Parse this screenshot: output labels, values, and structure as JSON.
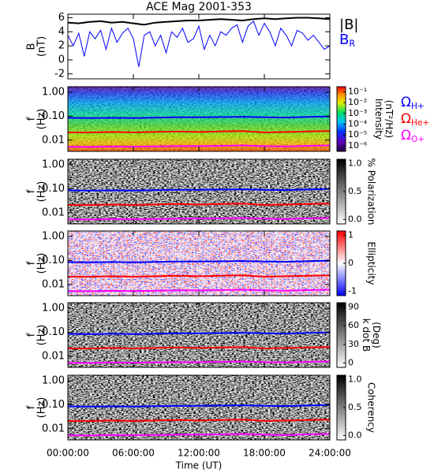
{
  "chart_data": {
    "title": "ACE Mag 2001-353",
    "xlabel": "Time (UT)",
    "xlim": [
      0,
      24
    ],
    "xticks": [
      {
        "value": 0,
        "label": "00:00:00"
      },
      {
        "value": 6,
        "label": "06:00:00"
      },
      {
        "value": 12,
        "label": "12:00:00"
      },
      {
        "value": 18,
        "label": "18:00:00"
      },
      {
        "value": 24,
        "label": "24:00:00"
      }
    ],
    "gyro_lines": {
      "x": [
        0,
        2,
        4,
        6,
        8,
        10,
        12,
        14,
        16,
        18,
        20,
        22,
        24
      ],
      "series": [
        {
          "name": "Ω",
          "sub": "H+",
          "color": "#0000ff",
          "values": [
            0.085,
            0.083,
            0.086,
            0.084,
            0.087,
            0.09,
            0.09,
            0.092,
            0.095,
            0.09,
            0.088,
            0.093,
            0.097
          ]
        },
        {
          "name": "Ω",
          "sub": "He+",
          "color": "#ff0000",
          "values": [
            0.021,
            0.021,
            0.022,
            0.021,
            0.022,
            0.023,
            0.022,
            0.023,
            0.024,
            0.021,
            0.022,
            0.023,
            0.024
          ]
        },
        {
          "name": "Ω",
          "sub": "O+",
          "color": "#ff00ff",
          "values": [
            0.0053,
            0.0052,
            0.0054,
            0.0053,
            0.0055,
            0.0056,
            0.0056,
            0.0058,
            0.006,
            0.0056,
            0.0055,
            0.0058,
            0.006
          ]
        }
      ]
    },
    "panels": [
      {
        "type": "line",
        "ylabel": [
          "B",
          "(nT)"
        ],
        "ylim": [
          -2.7,
          6.5
        ],
        "yticks": [
          -2,
          0,
          2,
          4,
          6
        ],
        "series": [
          {
            "name": "|B|",
            "color": "#000000",
            "x": [
              0,
              1,
              2,
              3,
              4,
              5,
              6,
              7,
              8,
              9,
              10,
              11,
              12,
              13,
              14,
              15,
              16,
              17,
              18,
              19,
              20,
              21,
              22,
              23,
              24
            ],
            "values": [
              5.3,
              5.2,
              5.4,
              5.5,
              5.3,
              5.4,
              5.2,
              5.0,
              5.3,
              5.4,
              5.5,
              5.6,
              5.6,
              5.7,
              5.8,
              5.7,
              5.6,
              5.8,
              5.9,
              5.8,
              5.9,
              6.0,
              6.0,
              5.9,
              5.8
            ]
          },
          {
            "name": "B",
            "sub": "R",
            "color": "#0000ff",
            "x": [
              0,
              0.5,
              1,
              1.5,
              2,
              2.5,
              3,
              3.5,
              4,
              4.5,
              5,
              5.5,
              6,
              6.5,
              7,
              7.5,
              8,
              8.5,
              9,
              9.5,
              10,
              10.5,
              11,
              11.5,
              12,
              12.5,
              13,
              13.5,
              14,
              14.5,
              15,
              15.5,
              16,
              16.5,
              17,
              17.5,
              18,
              18.5,
              19,
              19.5,
              20,
              20.5,
              21,
              21.5,
              22,
              22.5,
              23,
              23.5,
              24
            ],
            "values": [
              3.5,
              2.0,
              3.8,
              0.5,
              4.0,
              3.0,
              4.2,
              1.5,
              4.5,
              2.5,
              3.8,
              4.5,
              3.0,
              -1.0,
              3.5,
              4.0,
              2.0,
              3.5,
              1.0,
              4.0,
              3.2,
              4.5,
              2.5,
              3.0,
              4.8,
              1.5,
              3.5,
              2.0,
              4.0,
              3.5,
              4.5,
              5.0,
              2.5,
              4.8,
              5.5,
              3.5,
              5.2,
              4.0,
              2.0,
              4.5,
              3.5,
              2.0,
              4.2,
              3.8,
              2.8,
              3.5,
              2.5,
              1.5,
              2.0
            ]
          }
        ]
      },
      {
        "type": "spectrogram",
        "background": "intensity",
        "legend": true,
        "ylabel": [
          "f",
          "(Hz)"
        ],
        "log": true,
        "ylim": [
          0.0034,
          1.7
        ],
        "yticks": [
          {
            "value": 1,
            "label": "1.00"
          },
          {
            "value": 0.1,
            "label": "0.10"
          },
          {
            "value": 0.01,
            "label": "0.01"
          }
        ],
        "colorbar": {
          "label": [
            "Intensity",
            "(nT²/Hz)"
          ],
          "colormap": "rainbow",
          "log": true,
          "lim": [
            3e-07,
            0.3
          ],
          "ticks": [
            {
              "value": 0.1,
              "label": "10⁻¹"
            },
            {
              "value": 0.01,
              "label": "10⁻²"
            },
            {
              "value": 0.001,
              "label": "10⁻³"
            },
            {
              "value": 0.0001,
              "label": "10⁻⁴"
            },
            {
              "value": 1e-05,
              "label": "10⁻⁵"
            },
            {
              "value": 1e-06,
              "label": "10⁻⁶"
            }
          ]
        }
      },
      {
        "type": "spectrogram",
        "background": "gray",
        "ylabel": [
          "f",
          "(Hz)"
        ],
        "log": true,
        "ylim": [
          0.0034,
          1.7
        ],
        "yticks": [
          {
            "value": 1,
            "label": "1.00"
          },
          {
            "value": 0.1,
            "label": "0.10"
          },
          {
            "value": 0.01,
            "label": "0.01"
          }
        ],
        "colorbar": {
          "label": [
            "% Polarization"
          ],
          "colormap": "gray",
          "lim": [
            -0.08,
            1.08
          ],
          "ticks": [
            {
              "value": 0,
              "label": "0.0"
            },
            0.5,
            {
              "value": 1,
              "label": "1.0"
            }
          ]
        }
      },
      {
        "type": "spectrogram",
        "background": "diverging",
        "ylabel": [
          "f",
          "(Hz)"
        ],
        "log": true,
        "ylim": [
          0.0034,
          1.7
        ],
        "yticks": [
          {
            "value": 1,
            "label": "1.00"
          },
          {
            "value": 0.1,
            "label": "0.10"
          },
          {
            "value": 0.01,
            "label": "0.01"
          }
        ],
        "colorbar": {
          "label": [
            "Ellipticity"
          ],
          "colormap": "diverging",
          "lim": [
            -1.15,
            1.15
          ],
          "ticks": [
            1,
            0,
            -1
          ]
        }
      },
      {
        "type": "spectrogram",
        "background": "gray",
        "ylabel": [
          "f",
          "(Hz)"
        ],
        "log": true,
        "ylim": [
          0.0034,
          1.7
        ],
        "yticks": [
          {
            "value": 1,
            "label": "1.00"
          },
          {
            "value": 0.1,
            "label": "0.10"
          },
          {
            "value": 0.01,
            "label": "0.01"
          }
        ],
        "colorbar": {
          "label": [
            "k dot B",
            "(Deg)"
          ],
          "colormap": "gray",
          "lim": [
            -7,
            97
          ],
          "ticks": [
            0,
            30,
            60,
            90
          ]
        }
      },
      {
        "type": "spectrogram",
        "background": "gray",
        "ylabel": [
          "f",
          "(Hz)"
        ],
        "log": true,
        "ylim": [
          0.0034,
          1.7
        ],
        "yticks": [
          {
            "value": 1,
            "label": "1.00"
          },
          {
            "value": 0.1,
            "label": "0.10"
          },
          {
            "value": 0.01,
            "label": "0.01"
          }
        ],
        "colorbar": {
          "label": [
            "Coherency"
          ],
          "colormap": "gray",
          "lim": [
            -0.08,
            1.08
          ],
          "ticks": [
            {
              "value": 0,
              "label": "0.0"
            },
            0.5,
            {
              "value": 1,
              "label": "1.0"
            }
          ]
        }
      }
    ]
  }
}
